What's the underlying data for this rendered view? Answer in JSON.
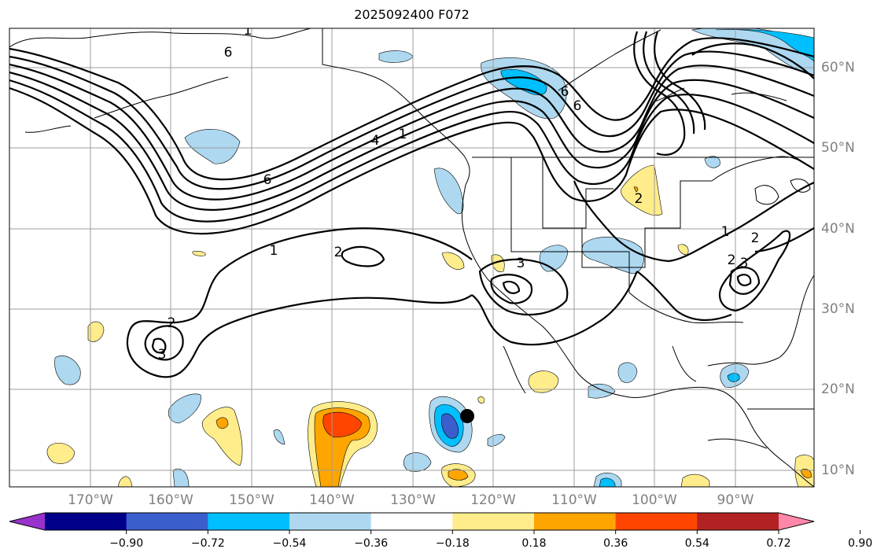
{
  "title": "2025092400 F072",
  "lon_labels": [
    "170°W",
    "160°W",
    "150°W",
    "140°W",
    "130°W",
    "120°W",
    "110°W",
    "100°W",
    "90°W"
  ],
  "lat_labels": [
    "60°N",
    "50°N",
    "40°N",
    "30°N",
    "20°N",
    "10°N"
  ],
  "colorbar": {
    "ticks": [
      "−0.90",
      "−0.72",
      "−0.54",
      "−0.36",
      "−0.18",
      "0.18",
      "0.36",
      "0.54",
      "0.72",
      "0.90"
    ],
    "colors": [
      "#9932cc",
      "#00008b",
      "#3a5fcd",
      "#00bfff",
      "#add8f0",
      "#ffffff",
      "#ffec8b",
      "#ffa500",
      "#ff4500",
      "#b22222",
      "#ff88aa"
    ]
  },
  "contour_labels": [
    "6",
    "6",
    "4",
    "1",
    "6",
    "6",
    "1",
    "2",
    "2",
    "3",
    "3",
    "2",
    "2",
    "1",
    "2",
    "3",
    "1"
  ],
  "storm_marker": "black-dot"
}
